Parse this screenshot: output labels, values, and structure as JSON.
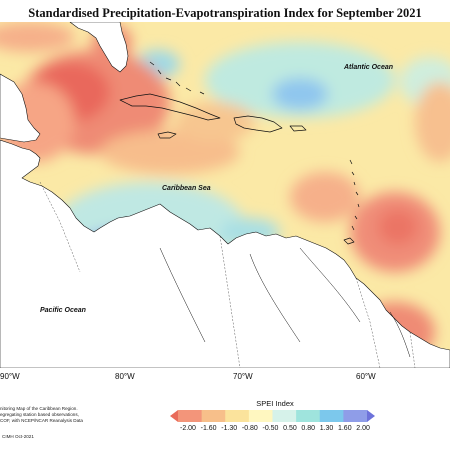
{
  "title": "Standardised Precipitation-Evapotranspiration Index for September 2021",
  "ocean_labels": {
    "atlantic": "Atlantic Ocean",
    "caribbean": "Caribbean Sea",
    "pacific": "Pacific Ocean"
  },
  "longitudes": [
    "90°W",
    "80°W",
    "70°W",
    "60°W"
  ],
  "credit_lines": [
    "nitoring Map of the Caribbean Region.",
    "egregating station based observations,",
    "COF, with NCEP/NCAR Reanalysis Data"
  ],
  "credit_footer": "CIMH Oct-2021",
  "legend": {
    "title": "SPEI Index",
    "labels": [
      "-2.00",
      "-1.60",
      "-1.30",
      "-0.80",
      "-0.50",
      "0.50",
      "0.80",
      "1.30",
      "1.60",
      "2.00"
    ],
    "colors": [
      "#e96b5a",
      "#f3957a",
      "#f7bf8a",
      "#fbe39c",
      "#fff7c0",
      "#d6f2ea",
      "#9fe4dd",
      "#7cc8ec",
      "#8f9de8",
      "#6d72da"
    ]
  }
}
